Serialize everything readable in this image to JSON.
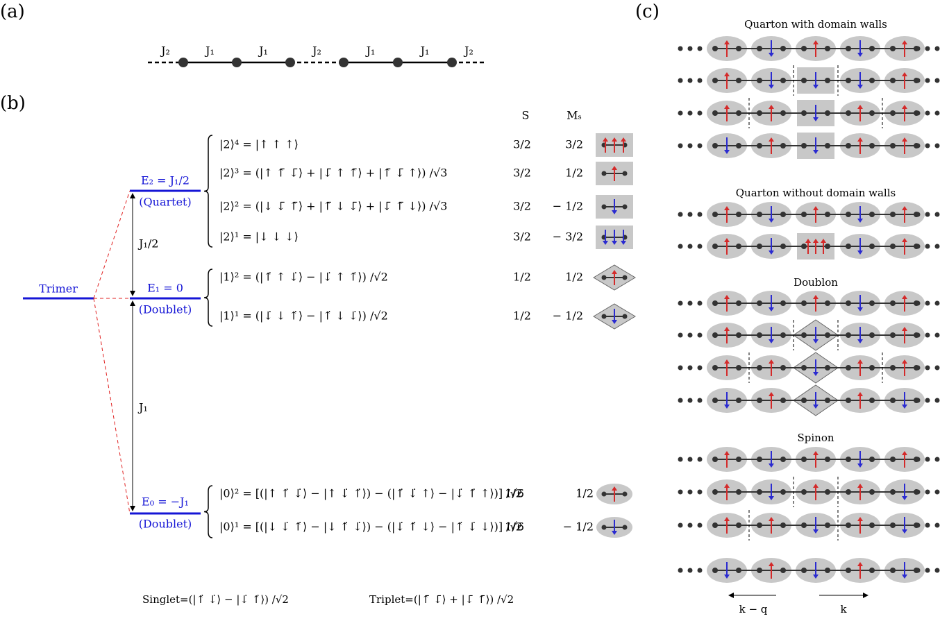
{
  "panel_labels": [
    "(a)",
    "(b)",
    "(c)"
  ],
  "chain": {
    "bonds": [
      "J₂",
      "J₁",
      "J₁",
      "J₂",
      "J₁",
      "J₁",
      "J₂"
    ]
  },
  "levels": {
    "trimer": "Trimer",
    "quartet": {
      "energy": "E₂ = J₁/2",
      "label": "(Quartet)"
    },
    "doublet_upper": {
      "energy": "E₁ = 0",
      "label": "(Doublet)"
    },
    "doublet_lower": {
      "energy": "E₀ = −J₁",
      "label": "(Doublet)"
    }
  },
  "gaps": [
    "J₁/2",
    "J₁"
  ],
  "headers": {
    "s": "S",
    "ms": "Mₛ"
  },
  "states": [
    {
      "ket": "|2⟩⁴ = |↑ ↑ ↑⟩",
      "s": "3/2",
      "ms": "3/2"
    },
    {
      "ket": "|2⟩³ = (|↑ ↑̄ ↓̄⟩ + |↓̄ ↑ ↑̄⟩ + |↑̄ ↓̄ ↑⟩) /√3",
      "s": "3/2",
      "ms": "1/2"
    },
    {
      "ket": "|2⟩² = (|↓ ↓̄ ↑̄⟩ + |↑̄ ↓ ↓̄⟩ + |↓̄ ↑̄ ↓⟩) /√3",
      "s": "3/2",
      "ms": "− 1/2"
    },
    {
      "ket": "|2⟩¹ = |↓ ↓ ↓⟩",
      "s": "3/2",
      "ms": "− 3/2"
    },
    {
      "ket": "|1⟩² = (|↑̇ ↑ ↓̇⟩ − |↓̇ ↑ ↑̇⟩) /√2",
      "s": "1/2",
      "ms": "1/2"
    },
    {
      "ket": "|1⟩¹ = (|↓̇ ↓ ↑̇⟩ − |↑̇ ↓ ↓̇⟩) /√2",
      "s": "1/2",
      "ms": "− 1/2"
    },
    {
      "ket": "|0⟩² = [(|↑ ↑̇ ↓̇⟩ − |↑ ↓̇ ↑̇⟩) − (|↑̇ ↓̇ ↑⟩ − |↓̇ ↑̇ ↑⟩)] /√6",
      "s": "1/2",
      "ms": "1/2"
    },
    {
      "ket": "|0⟩¹ = [(|↓ ↓̇ ↑̇⟩ − |↓ ↑̇ ↓̇⟩) − (|↓̇ ↑̇ ↓⟩ − |↑̇ ↓̇ ↓⟩)] /√6",
      "s": "1/2",
      "ms": "− 1/2"
    }
  ],
  "footer": {
    "singlet": "Singlet=(|↑̇ ↓̇⟩ − |↓̇ ↑̇⟩) /√2",
    "triplet": "Triplet=(|↑̄ ↓̄⟩ + |↓̄ ↑̄⟩) /√2"
  },
  "panel_c": {
    "titles": [
      "Quarton with domain walls",
      "Quarton without domain walls",
      "Doublon",
      "Spinon"
    ],
    "momenta": [
      "k − q",
      "k"
    ]
  }
}
